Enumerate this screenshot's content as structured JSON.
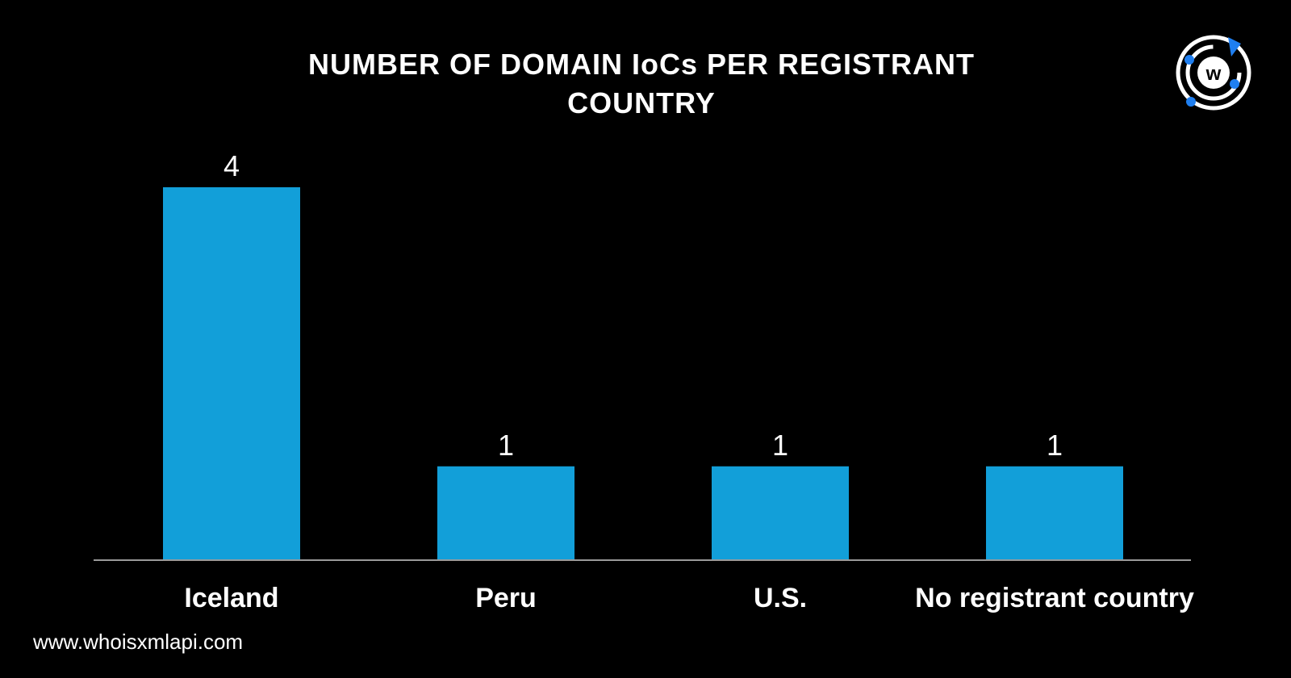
{
  "title_lines": [
    "NUMBER OF DOMAIN IoCs PER REGISTRANT",
    "COUNTRY"
  ],
  "logo": {
    "icon": "whoisxmlapi-logo-icon",
    "letter": "w",
    "accent_color": "#1F7FF0"
  },
  "footer": {
    "url": "www.whoisxmlapi.com"
  },
  "chart_data": {
    "type": "bar",
    "title": "NUMBER OF DOMAIN IoCs PER REGISTRANT COUNTRY",
    "categories": [
      "Iceland",
      "Peru",
      "U.S.",
      "No registrant country"
    ],
    "values": [
      4,
      1,
      1,
      1
    ],
    "data_labels": [
      "4",
      "1",
      "1",
      "1"
    ],
    "xlabel": "",
    "ylabel": "",
    "ylim": [
      0,
      4
    ],
    "grid": false,
    "legend": "none",
    "bar_color": "#129FD9",
    "axis_color": "#9A9A9A",
    "background": "#000000"
  }
}
